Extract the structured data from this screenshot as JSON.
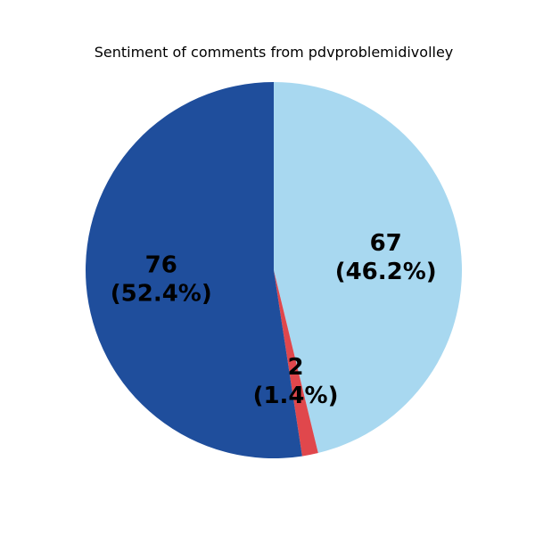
{
  "chart_data": {
    "type": "pie",
    "title": "Sentiment of comments from pdvproblemidivolley",
    "start_angle_deg": 90,
    "direction": "clockwise",
    "slices": [
      {
        "value": 67,
        "percent": "46.2%",
        "label_count": "67",
        "label_percent": "(46.2%)",
        "color": "#a8d8f0"
      },
      {
        "value": 2,
        "percent": "1.4%",
        "label_count": "2",
        "label_percent": "(1.4%)",
        "color": "#e0474c"
      },
      {
        "value": 76,
        "percent": "52.4%",
        "label_count": "76",
        "label_percent": "(52.4%)",
        "color": "#1f4e9c"
      }
    ]
  }
}
